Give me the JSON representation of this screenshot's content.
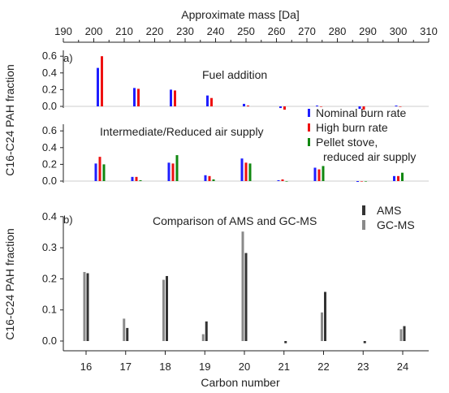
{
  "colors": {
    "blue": "#1f1fff",
    "red": "#ee1111",
    "green": "#118811",
    "dark": "#333333",
    "gray": "#8a8a8a",
    "axis": "#222222"
  },
  "top_axis": {
    "label": "Approximate mass [Da]",
    "ticks": [
      "190",
      "200",
      "210",
      "220",
      "230",
      "240",
      "250",
      "260",
      "270",
      "280",
      "290",
      "300",
      "310"
    ]
  },
  "chart_data": [
    {
      "type": "bar",
      "panel": "a1",
      "panel_label": "a)",
      "title": "Fuel addition",
      "x_axis_scale": "mass",
      "xlim": [
        190,
        310
      ],
      "ylim": [
        0,
        0.6
      ],
      "yticks": [
        "0.0",
        "0.2",
        "0.4",
        "0.6"
      ],
      "x": [
        202,
        214,
        226,
        238,
        250,
        262,
        274,
        288,
        300
      ],
      "series": [
        {
          "name": "Nominal burn rate",
          "color": "#1f1fff",
          "values": [
            0.46,
            0.22,
            0.2,
            0.13,
            0.03,
            -0.02,
            0.01,
            -0.03,
            0.01
          ]
        },
        {
          "name": "High burn rate",
          "color": "#ee1111",
          "values": [
            0.6,
            0.21,
            0.19,
            0.1,
            0.01,
            -0.04,
            0.0,
            -0.04,
            0.0
          ]
        }
      ]
    },
    {
      "type": "bar",
      "panel": "a2",
      "title": "Intermediate/Reduced air supply",
      "x_axis_scale": "mass",
      "xlim": [
        190,
        310
      ],
      "ylim": [
        0,
        0.6
      ],
      "yticks": [
        "0.0",
        "0.2",
        "0.4",
        "0.6"
      ],
      "x": [
        202,
        214,
        226,
        238,
        250,
        262,
        274,
        288,
        300
      ],
      "series": [
        {
          "name": "Nominal burn rate",
          "color": "#1f1fff",
          "values": [
            0.21,
            0.05,
            0.22,
            0.07,
            0.27,
            0.01,
            0.16,
            -0.01,
            0.06
          ]
        },
        {
          "name": "High burn rate",
          "color": "#ee1111",
          "values": [
            0.29,
            0.05,
            0.21,
            0.06,
            0.22,
            0.02,
            0.14,
            0.0,
            0.06
          ]
        },
        {
          "name": "Pellet stove, reduced air supply",
          "color": "#118811",
          "values": [
            0.2,
            0.01,
            0.31,
            0.02,
            0.21,
            0.0,
            0.18,
            0.0,
            0.1
          ]
        }
      ]
    },
    {
      "type": "bar",
      "panel": "b",
      "panel_label": "b)",
      "title": "Comparison of AMS and GC-MS",
      "xlabel": "Carbon number",
      "ylabel": "C16-C24 PAH fraction",
      "categories": [
        "16",
        "17",
        "18",
        "19",
        "20",
        "21",
        "22",
        "23",
        "24"
      ],
      "ylim": [
        -0.03,
        0.4
      ],
      "yticks": [
        "0.0",
        "0.1",
        "0.2",
        "0.3",
        "0.4"
      ],
      "series": [
        {
          "name": "GC-MS",
          "color": "#8a8a8a",
          "values": [
            0.222,
            0.072,
            0.197,
            0.022,
            0.352,
            0.0,
            0.092,
            0.0,
            0.038
          ]
        },
        {
          "name": "AMS",
          "color": "#333333",
          "values": [
            0.218,
            0.042,
            0.209,
            0.063,
            0.283,
            -0.007,
            0.158,
            -0.007,
            0.048
          ]
        }
      ]
    }
  ],
  "legend_a": [
    {
      "label": "Nominal burn rate",
      "color": "#1f1fff"
    },
    {
      "label": "High burn rate",
      "color": "#ee1111"
    },
    {
      "label": "Pellet stove,",
      "label2": "reduced air supply",
      "color": "#118811"
    }
  ],
  "legend_b": [
    {
      "label": "AMS",
      "color": "#333333"
    },
    {
      "label": "GC-MS",
      "color": "#8a8a8a"
    }
  ],
  "ylabel_a": "C16-C24 PAH fraction"
}
